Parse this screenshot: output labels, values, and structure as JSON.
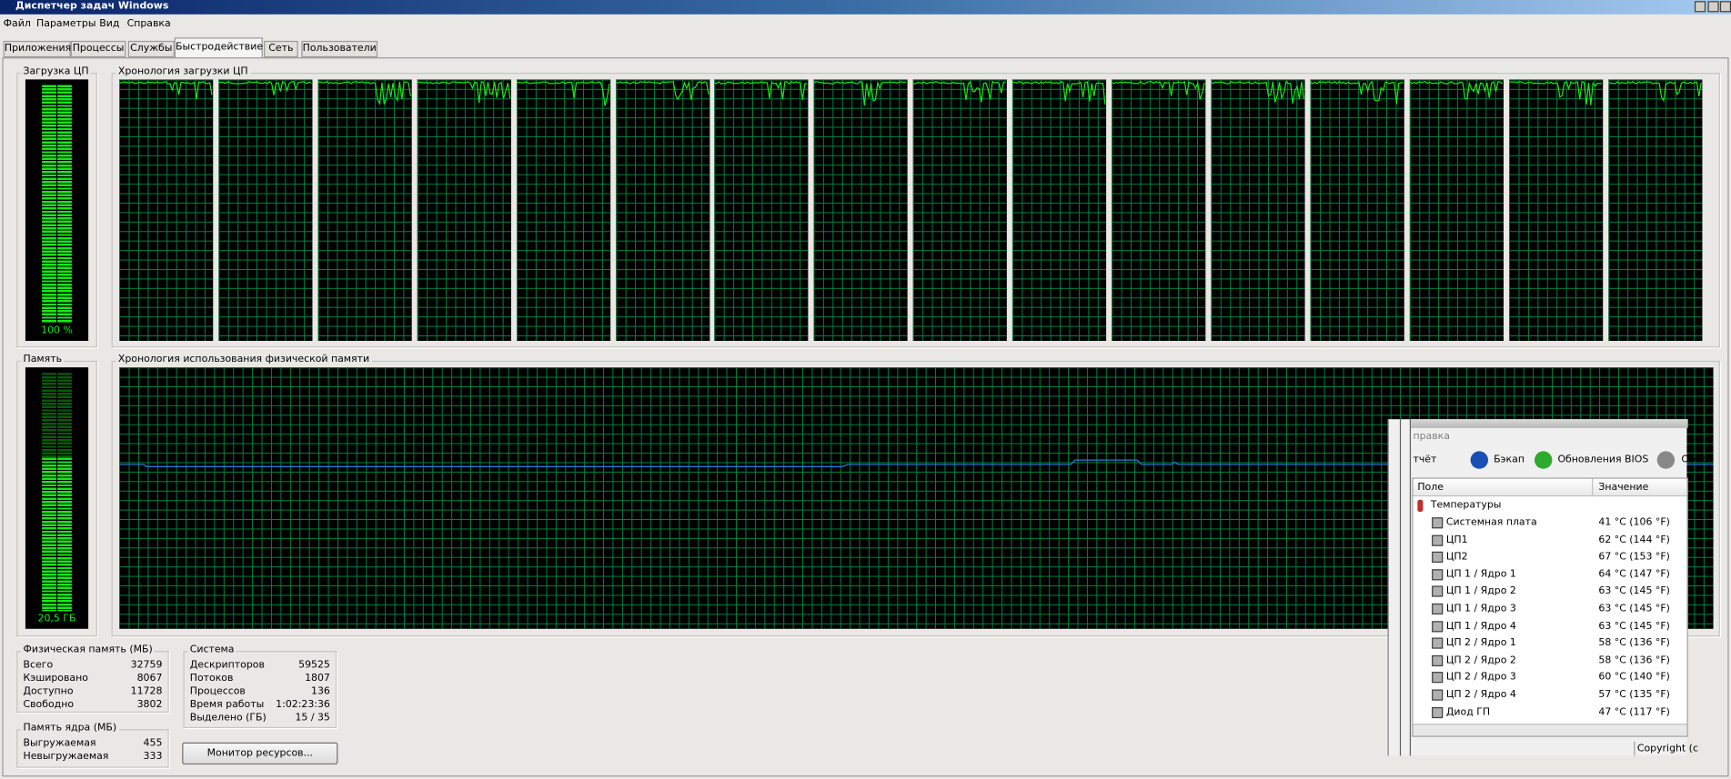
{
  "window": {
    "title": "Диспетчер задач Windows"
  },
  "menu": [
    "Файл",
    "Параметры",
    "Вид",
    "Справка"
  ],
  "tabs": [
    "Приложения",
    "Процессы",
    "Службы",
    "Быстродействие",
    "Сеть",
    "Пользователи"
  ],
  "cpu": {
    "usage_label": "Загрузка ЦП",
    "usage_value": "100 %",
    "history_label": "Хронология загрузки ЦП"
  },
  "memory": {
    "label": "Память",
    "value": "20,5 ГБ",
    "history_label": "Хронология использования физической памяти"
  },
  "physical_memory": {
    "title": "Физическая память (МБ)",
    "rows": [
      [
        "Всего",
        "32759"
      ],
      [
        "Кэшировано",
        "8067"
      ],
      [
        "Доступно",
        "11728"
      ],
      [
        "Свободно",
        "3802"
      ]
    ]
  },
  "kernel_memory": {
    "title": "Память ядра (МБ)",
    "rows": [
      [
        "Выгружаемая",
        "455"
      ],
      [
        "Невыгружаемая",
        "333"
      ]
    ]
  },
  "system": {
    "title": "Система",
    "rows": [
      [
        "Дескрипторов",
        "59525"
      ],
      [
        "Потоков",
        "1807"
      ],
      [
        "Процессов",
        "136"
      ],
      [
        "Время работы",
        "1:02:23:36"
      ],
      [
        "Выделено (ГБ)",
        "15 / 35"
      ]
    ]
  },
  "resource_monitor_button": "Монитор ресурсов...",
  "overlay": {
    "menu": "правка",
    "toolbar": [
      "тчёт",
      "Бэкап",
      "Обновления BIOS",
      "Обно"
    ],
    "columns": [
      "Поле",
      "Значение"
    ],
    "group": "Температуры",
    "rows": [
      [
        "Системная плата",
        "41 °C  (106 °F)"
      ],
      [
        "ЦП1",
        "62 °C  (144 °F)"
      ],
      [
        "ЦП2",
        "67 °C  (153 °F)"
      ],
      [
        "ЦП 1 / Ядро 1",
        "64 °C  (147 °F)"
      ],
      [
        "ЦП 1 / Ядро 2",
        "63 °C  (145 °F)"
      ],
      [
        "ЦП 1 / Ядро 3",
        "63 °C  (145 °F)"
      ],
      [
        "ЦП 1 / Ядро 4",
        "63 °C  (145 °F)"
      ],
      [
        "ЦП 2 / Ядро 1",
        "58 °C  (136 °F)"
      ],
      [
        "ЦП 2 / Ядро 2",
        "58 °C  (136 °F)"
      ],
      [
        "ЦП 2 / Ядро 3",
        "60 °C  (140 °F)"
      ],
      [
        "ЦП 2 / Ядро 4",
        "57 °C  (135 °F)"
      ],
      [
        "Диод ГП",
        "47 °C  (117 °F)"
      ]
    ],
    "footer": "Copyright (c"
  }
}
